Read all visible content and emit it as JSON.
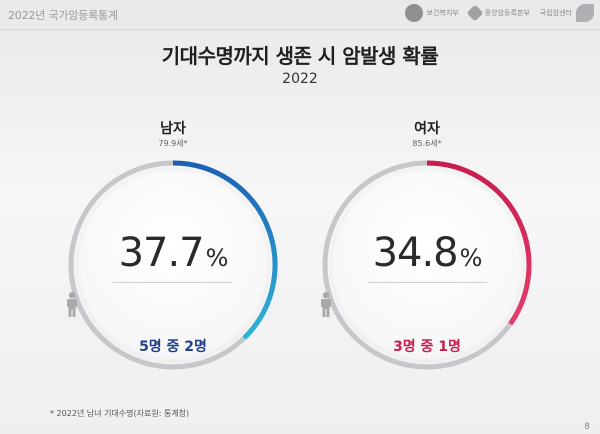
{
  "header": {
    "title": "2022년 국가암등록통계",
    "logos": [
      "보건복지부",
      "중앙암등록본부",
      "국립암센터"
    ]
  },
  "chart_data": {
    "type": "pie",
    "title": "기대수명까지 생존 시 암발생 확률",
    "subtitle": "2022",
    "series": [
      {
        "name": "남자",
        "life_expectancy": "79.9세*",
        "value": 37.7,
        "value_label": "37.7",
        "unit": "%",
        "people_total": 5,
        "people_highlighted": 2,
        "ratio_label": "5명 중 2명",
        "color": "#1b5fb5",
        "color_end": "#2fb5d6"
      },
      {
        "name": "여자",
        "life_expectancy": "85.6세*",
        "value": 34.8,
        "value_label": "34.8",
        "unit": "%",
        "people_total": 3,
        "people_highlighted": 1,
        "ratio_label": "3명 중 1명",
        "color": "#c81e4e",
        "color_end": "#e63c6e"
      }
    ],
    "track_color": "#c7c7cb",
    "person_inactive_color": "#a9a9ad"
  },
  "footnote": "* 2022년 남녀 기대수명(자료원: 통계청)",
  "page_number": "8"
}
